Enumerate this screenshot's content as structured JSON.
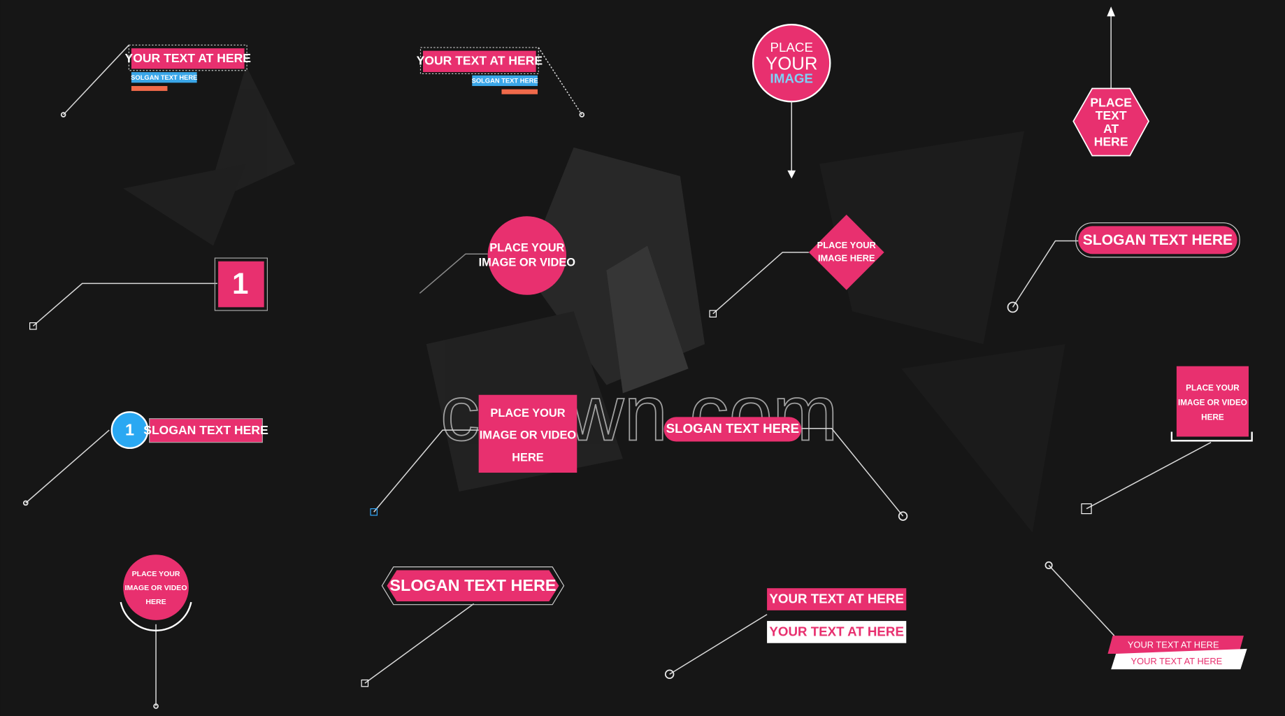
{
  "watermark": "cgown.com",
  "callouts": [
    {
      "lines": [
        "YOUR TEXT AT HERE",
        "SOLGAN TEXT HERE"
      ]
    },
    {
      "lines": [
        "YOUR TEXT AT HERE",
        "SOLGAN TEXT HERE"
      ]
    },
    {
      "lines": [
        "PLACE",
        "YOUR",
        "IMAGE"
      ]
    },
    {
      "lines": [
        "PLACE",
        "TEXT",
        "AT",
        "HERE"
      ]
    },
    {
      "lines": [
        "1"
      ]
    },
    {
      "lines": [
        "PLACE YOUR",
        "IMAGE OR VIDEO"
      ]
    },
    {
      "lines": [
        "PLACE YOUR",
        "IMAGE HERE"
      ]
    },
    {
      "lines": [
        "SLOGAN TEXT HERE"
      ]
    },
    {
      "lines": [
        "1",
        "SLOGAN TEXT HERE"
      ]
    },
    {
      "lines": [
        "PLACE YOUR",
        "IMAGE OR VIDEO",
        "HERE"
      ]
    },
    {
      "lines": [
        "SLOGAN TEXT HERE"
      ]
    },
    {
      "lines": [
        "PLACE YOUR",
        "IMAGE OR VIDEO",
        "HERE"
      ]
    },
    {
      "lines": [
        "PLACE YOUR",
        "IMAGE OR VIDEO",
        "HERE"
      ]
    },
    {
      "lines": [
        "SLOGAN TEXT HERE"
      ]
    },
    {
      "lines": [
        "YOUR TEXT AT HERE",
        "YOUR TEXT AT HERE"
      ]
    },
    {
      "lines": [
        "YOUR TEXT AT HERE",
        "YOUR TEXT AT HERE"
      ]
    }
  ]
}
